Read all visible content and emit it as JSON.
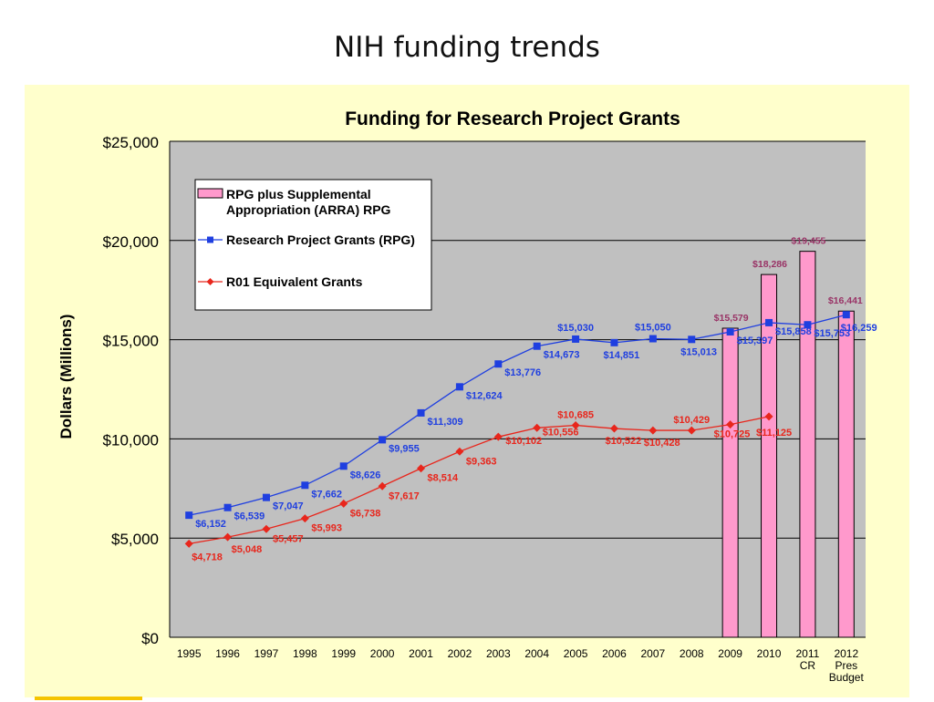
{
  "slide": {
    "title": "NIH funding trends"
  },
  "chart_data": {
    "type": "bar",
    "title": "Funding for Research  Project Grants",
    "xlabel": "",
    "ylabel": "Dollars (Millions)",
    "ylim": [
      0,
      25000
    ],
    "y_ticks": [
      {
        "value": 0,
        "label": "$0"
      },
      {
        "value": 5000,
        "label": "$5,000"
      },
      {
        "value": 10000,
        "label": "$10,000"
      },
      {
        "value": 15000,
        "label": "$15,000"
      },
      {
        "value": 20000,
        "label": "$20,000"
      },
      {
        "value": 25000,
        "label": "$25,000"
      }
    ],
    "grid": true,
    "legend_position": "top-left",
    "categories": [
      [
        "1995"
      ],
      [
        "1996"
      ],
      [
        "1997"
      ],
      [
        "1998"
      ],
      [
        "1999"
      ],
      [
        "2000"
      ],
      [
        "2001"
      ],
      [
        "2002"
      ],
      [
        "2003"
      ],
      [
        "2004"
      ],
      [
        "2005"
      ],
      [
        "2006"
      ],
      [
        "2007"
      ],
      [
        "2008"
      ],
      [
        "2009"
      ],
      [
        "2010"
      ],
      [
        "2011",
        "CR"
      ],
      [
        "2012",
        "Pres",
        "Budget"
      ]
    ],
    "series": [
      {
        "name": "RPG plus Supplemental Appropriation (ARRA) RPG",
        "legend_lines": [
          "RPG plus Supplemental",
          "Appropriation (ARRA) RPG"
        ],
        "type": "bar",
        "color": "#ff99cc",
        "label_color": "#993366",
        "values": [
          null,
          null,
          null,
          null,
          null,
          null,
          null,
          null,
          null,
          null,
          null,
          null,
          null,
          null,
          15579,
          18286,
          19455,
          16441
        ],
        "labels": [
          null,
          null,
          null,
          null,
          null,
          null,
          null,
          null,
          null,
          null,
          null,
          null,
          null,
          null,
          "$15,579",
          "$18,286",
          "$19,455",
          "$16,441"
        ]
      },
      {
        "name": "Research Project Grants (RPG)",
        "legend_lines": [
          "Research Project Grants (RPG)"
        ],
        "type": "line",
        "marker": "square",
        "color": "#1f3fe0",
        "values": [
          6152,
          6539,
          7047,
          7662,
          8626,
          9955,
          11309,
          12624,
          13776,
          14673,
          15030,
          14851,
          15050,
          15013,
          15397,
          15858,
          15753,
          16259
        ],
        "labels": [
          "$6,152",
          "$6,539",
          "$7,047",
          "$7,662",
          "$8,626",
          "$9,955",
          "$11,309",
          "$12,624",
          "$13,776",
          "$14,673",
          "$15,030",
          "$14,851",
          "$15,050",
          "$15,013",
          "$15,397",
          "$15,858",
          "$15,753",
          "$16,259"
        ]
      },
      {
        "name": "R01 Equivalent Grants",
        "legend_lines": [
          "R01 Equivalent Grants"
        ],
        "type": "line",
        "marker": "diamond",
        "color": "#e8261c",
        "values": [
          4718,
          5048,
          5457,
          5993,
          6738,
          7617,
          8514,
          9363,
          10102,
          10556,
          10685,
          10522,
          10428,
          10429,
          10725,
          11125,
          null,
          null
        ],
        "labels": [
          "$4,718",
          "$5,048",
          "$5,457",
          "$5,993",
          "$6,738",
          "$7,617",
          "$8,514",
          "$9,363",
          "$10,102",
          "$10,556",
          "$10,685",
          "$10,522",
          "$10,428",
          "$10,429",
          "$10,725",
          "$11,125",
          null,
          null
        ]
      }
    ],
    "colors": {
      "plot_background": "#c0c0c0",
      "panel_background": "#ffffcc",
      "gridline": "#000000"
    }
  }
}
